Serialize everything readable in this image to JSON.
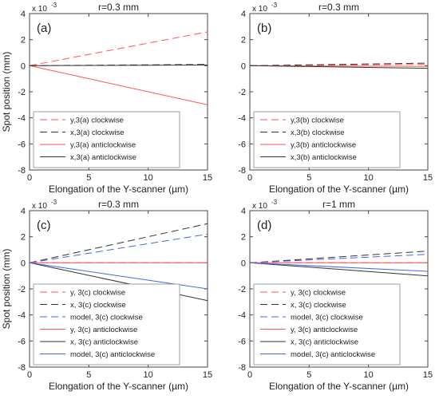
{
  "chart_data": [
    {
      "type": "line",
      "panel_label": "(a)",
      "title": "r=0.3 mm",
      "xlabel": "Elongation of the Y-scanner (µm)",
      "ylabel": "Spot position (mm)",
      "y_multiplier": "x 10",
      "y_exponent": "-3",
      "xlim": [
        0,
        15
      ],
      "ylim": [
        -8,
        4
      ],
      "xticks": [
        "0",
        "5",
        "10",
        "15"
      ],
      "yticks": [
        "-8",
        "-6",
        "-4",
        "-2",
        "0",
        "2",
        "4"
      ],
      "legend_position": "lower-left",
      "series": [
        {
          "name": "y,3(a) clockwise",
          "color": "#ff5555",
          "dash": "dashed",
          "x": [
            0,
            15
          ],
          "y": [
            0,
            2.6
          ]
        },
        {
          "name": "x,3(a) clockwise",
          "color": "#333333",
          "dash": "dashed",
          "x": [
            0,
            15
          ],
          "y": [
            0,
            0.1
          ]
        },
        {
          "name": "y,3(a) anticlockwise",
          "color": "#ff5555",
          "dash": "solid",
          "x": [
            0,
            15
          ],
          "y": [
            0,
            -3.0
          ]
        },
        {
          "name": "x,3(a) anticlockwise",
          "color": "#333333",
          "dash": "solid",
          "x": [
            0,
            15
          ],
          "y": [
            0,
            0.05
          ]
        }
      ]
    },
    {
      "type": "line",
      "panel_label": "(b)",
      "title": "r=0.3 mm",
      "xlabel": "Elongation of the Y-scanner (µm)",
      "ylabel": "",
      "y_multiplier": "x 10",
      "y_exponent": "-3",
      "xlim": [
        0,
        15
      ],
      "ylim": [
        -8,
        4
      ],
      "xticks": [
        "0",
        "5",
        "10",
        "15"
      ],
      "yticks": [
        "-8",
        "-6",
        "-4",
        "-2",
        "0",
        "2",
        "4"
      ],
      "legend_position": "lower-left",
      "series": [
        {
          "name": "y,3(b) clockwise",
          "color": "#ff5555",
          "dash": "dashed",
          "x": [
            0,
            15
          ],
          "y": [
            0,
            0.1
          ]
        },
        {
          "name": "x,3(b) clockwise",
          "color": "#333333",
          "dash": "dashed",
          "x": [
            0,
            15
          ],
          "y": [
            0,
            0.2
          ]
        },
        {
          "name": "y,3(b) anticlockwise",
          "color": "#ff5555",
          "dash": "solid",
          "x": [
            0,
            15
          ],
          "y": [
            0,
            -0.05
          ]
        },
        {
          "name": "x,3(b) anticlockwise",
          "color": "#333333",
          "dash": "solid",
          "x": [
            0,
            15
          ],
          "y": [
            0,
            -0.2
          ]
        }
      ]
    },
    {
      "type": "line",
      "panel_label": "(c)",
      "title": "r=0.3 mm",
      "xlabel": "Elongation of the Y-scanner (µm)",
      "ylabel": "Spot position (mm)",
      "y_multiplier": "x 10",
      "y_exponent": "-3",
      "xlim": [
        0,
        15
      ],
      "ylim": [
        -8,
        4
      ],
      "xticks": [
        "0",
        "5",
        "10",
        "15"
      ],
      "yticks": [
        "-8",
        "-6",
        "-4",
        "-2",
        "0",
        "2",
        "4"
      ],
      "legend_position": "lower-left",
      "series": [
        {
          "name": "y, 3(c) clockwise",
          "color": "#ff5555",
          "dash": "dashed",
          "x": [
            0,
            15
          ],
          "y": [
            0,
            0
          ]
        },
        {
          "name": "x, 3(c) clockwise",
          "color": "#333333",
          "dash": "dashed",
          "x": [
            0,
            15
          ],
          "y": [
            0,
            3.0
          ]
        },
        {
          "name": "model, 3(c) clockwise",
          "color": "#4466ee",
          "dash": "dashed",
          "x": [
            0,
            15
          ],
          "y": [
            0,
            2.2
          ]
        },
        {
          "name": "y, 3(c) anticlockwise",
          "color": "#ff5555",
          "dash": "solid",
          "x": [
            0,
            15
          ],
          "y": [
            0,
            0
          ]
        },
        {
          "name": "x, 3(c) anticlockwise",
          "color": "#333333",
          "dash": "solid",
          "x": [
            0,
            15
          ],
          "y": [
            0,
            -2.9
          ]
        },
        {
          "name": "model, 3(c) anticlockwise",
          "color": "#4466ee",
          "dash": "solid",
          "x": [
            0,
            15
          ],
          "y": [
            0,
            -2.0
          ]
        }
      ]
    },
    {
      "type": "line",
      "panel_label": "(d)",
      "title": "r=1 mm",
      "xlabel": "Elongation of the Y-scanner (µm)",
      "ylabel": "",
      "y_multiplier": "x 10",
      "y_exponent": "-3",
      "xlim": [
        0,
        15
      ],
      "ylim": [
        -8,
        4
      ],
      "xticks": [
        "0",
        "5",
        "10",
        "15"
      ],
      "yticks": [
        "-8",
        "-6",
        "-4",
        "-2",
        "0",
        "2",
        "4"
      ],
      "legend_position": "lower-left",
      "series": [
        {
          "name": "y, 3(c) clockwise",
          "color": "#ff5555",
          "dash": "dashed",
          "x": [
            0,
            15
          ],
          "y": [
            0,
            0
          ]
        },
        {
          "name": "x, 3(c) clockwise",
          "color": "#333333",
          "dash": "dashed",
          "x": [
            0,
            15
          ],
          "y": [
            0,
            0.9
          ]
        },
        {
          "name": "model, 3(c) clockwise",
          "color": "#4466ee",
          "dash": "dashed",
          "x": [
            0,
            15
          ],
          "y": [
            0,
            0.65
          ]
        },
        {
          "name": "y, 3(c) anticlockwise",
          "color": "#ff5555",
          "dash": "solid",
          "x": [
            0,
            15
          ],
          "y": [
            0,
            0
          ]
        },
        {
          "name": "x, 3(c) anticlockwise",
          "color": "#333333",
          "dash": "solid",
          "x": [
            0,
            15
          ],
          "y": [
            0,
            -1.0
          ]
        },
        {
          "name": "model, 3(c) anticlockwise",
          "color": "#4466ee",
          "dash": "solid",
          "x": [
            0,
            15
          ],
          "y": [
            0,
            -0.65
          ]
        }
      ]
    }
  ]
}
